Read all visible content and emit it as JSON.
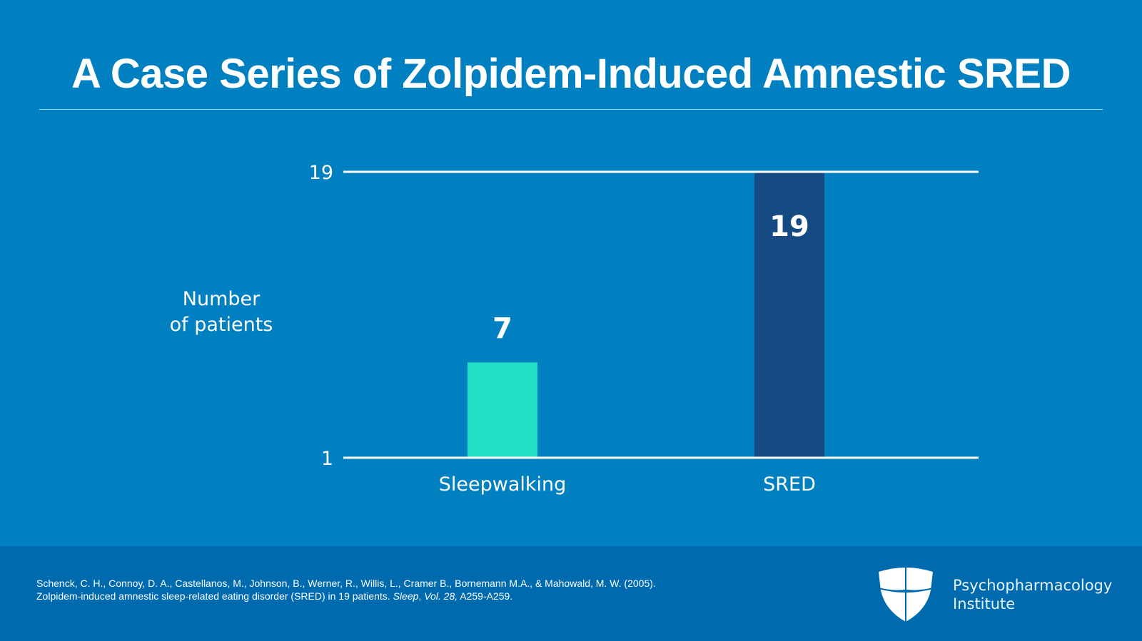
{
  "slide": {
    "title": "A Case Series of Zolpidem-Induced Amnestic SRED",
    "colors": {
      "background": "#0080C0",
      "footer": "#006AAF",
      "sleepwalking_bar": "#22E0C4",
      "sred_bar": "#164A82",
      "axis_line": "#ffffff"
    }
  },
  "chart_data": {
    "type": "bar",
    "title": "",
    "xlabel": "",
    "ylabel": "Number of patients",
    "ylabel_lines": [
      "Number",
      "of patients"
    ],
    "categories": [
      "Sleepwalking",
      "SRED"
    ],
    "values": [
      7,
      19
    ],
    "data_labels": [
      "7",
      "19"
    ],
    "bar_colors": [
      "#22E0C4",
      "#164A82"
    ],
    "yticks": [
      1,
      19
    ],
    "ytick_labels": [
      "1",
      "19"
    ],
    "ylim": [
      1,
      19
    ],
    "grid": false,
    "legend": "none"
  },
  "footer": {
    "citation_line1": "Schenck, C. H., Connoy, D. A., Castellanos, M., Johnson, B., Werner, R., Willis, L., Cramer B., Bornemann M.A., & Mahowald, M. W. (2005).",
    "citation_line2_pre": "Zolpidem-induced amnestic sleep-related eating disorder (SRED) in 19 patients. ",
    "citation_journal": "Sleep",
    "citation_sep": ", ",
    "citation_volume": "Vol. 28,",
    "citation_pages": " A259-A259.",
    "brand_line1": "Psychopharmacology",
    "brand_line2": "Institute",
    "logo_icon": "shield-cross-icon"
  }
}
